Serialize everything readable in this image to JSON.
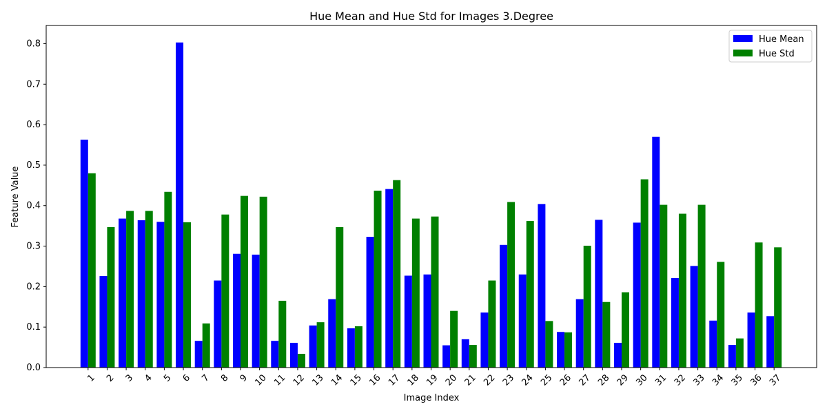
{
  "chart_data": {
    "type": "bar",
    "title": "Hue Mean and Hue Std for Images 3.Degree",
    "xlabel": "Image Index",
    "ylabel": "Feature Value",
    "ylim": [
      0,
      0.845
    ],
    "yticks": [
      "0.0",
      "0.1",
      "0.2",
      "0.3",
      "0.4",
      "0.5",
      "0.6",
      "0.7",
      "0.8"
    ],
    "legend_position": "top-right",
    "categories": [
      "1",
      "2",
      "3",
      "4",
      "5",
      "6",
      "7",
      "8",
      "9",
      "10",
      "11",
      "12",
      "13",
      "14",
      "15",
      "16",
      "17",
      "18",
      "19",
      "20",
      "21",
      "22",
      "23",
      "24",
      "25",
      "26",
      "27",
      "28",
      "29",
      "30",
      "31",
      "32",
      "33",
      "34",
      "35",
      "36",
      "37"
    ],
    "series": [
      {
        "name": "Hue Mean",
        "color": "#0000ff",
        "values": [
          0.563,
          0.226,
          0.368,
          0.364,
          0.36,
          0.803,
          0.066,
          0.215,
          0.281,
          0.279,
          0.066,
          0.061,
          0.104,
          0.169,
          0.097,
          0.323,
          0.441,
          0.227,
          0.23,
          0.055,
          0.07,
          0.136,
          0.303,
          0.23,
          0.404,
          0.088,
          0.169,
          0.365,
          0.061,
          0.358,
          0.57,
          0.221,
          0.251,
          0.116,
          0.056,
          0.136,
          0.127
        ]
      },
      {
        "name": "Hue Std",
        "color": "#008000",
        "values": [
          0.48,
          0.347,
          0.387,
          0.387,
          0.434,
          0.359,
          0.109,
          0.378,
          0.424,
          0.422,
          0.165,
          0.034,
          0.112,
          0.347,
          0.102,
          0.437,
          0.463,
          0.368,
          0.373,
          0.14,
          0.056,
          0.215,
          0.409,
          0.362,
          0.115,
          0.087,
          0.301,
          0.162,
          0.186,
          0.465,
          0.402,
          0.38,
          0.402,
          0.261,
          0.072,
          0.309,
          0.297
        ]
      }
    ]
  }
}
